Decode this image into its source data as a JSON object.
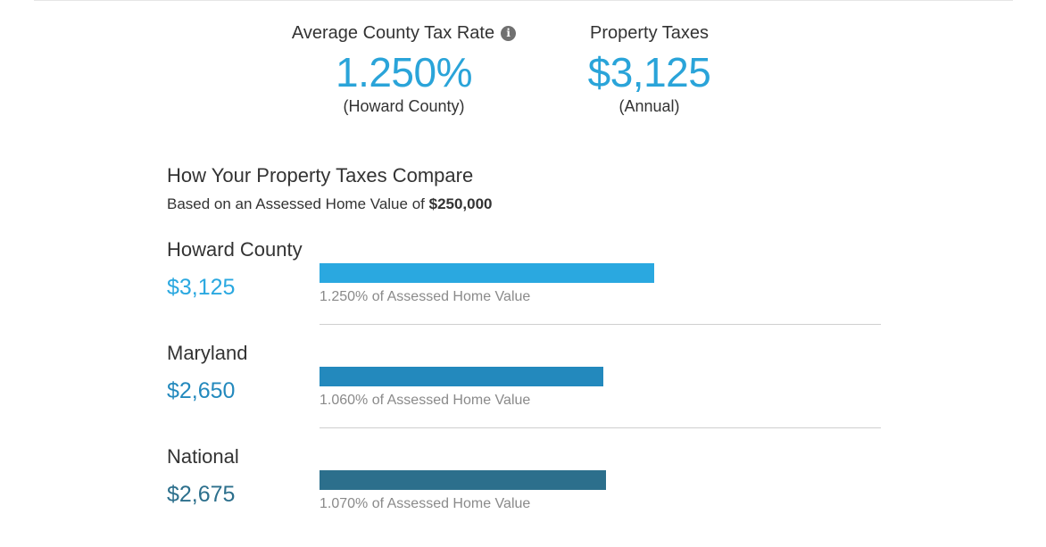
{
  "summary": {
    "rate": {
      "label": "Average County Tax Rate",
      "value": "1.250%",
      "sub": "(Howard County)"
    },
    "tax": {
      "label": "Property Taxes",
      "value": "$3,125",
      "sub": "(Annual)"
    }
  },
  "compare": {
    "title": "How Your Property Taxes Compare",
    "subtitle_prefix": "Based on an Assessed Home Value of",
    "subtitle_value": "$250,000",
    "max_value": 5000,
    "rows": [
      {
        "name": "Howard County",
        "amount": "$3,125",
        "value": 3125,
        "caption": "1.250% of Assessed Home Value",
        "color": "#2aa8e0"
      },
      {
        "name": "Maryland",
        "amount": "$2,650",
        "value": 2650,
        "caption": "1.060% of Assessed Home Value",
        "color": "#2389bd"
      },
      {
        "name": "National",
        "amount": "$2,675",
        "value": 2675,
        "caption": "1.070% of Assessed Home Value",
        "color": "#2c6f8c"
      }
    ]
  },
  "icons": {
    "info": "info-icon"
  }
}
